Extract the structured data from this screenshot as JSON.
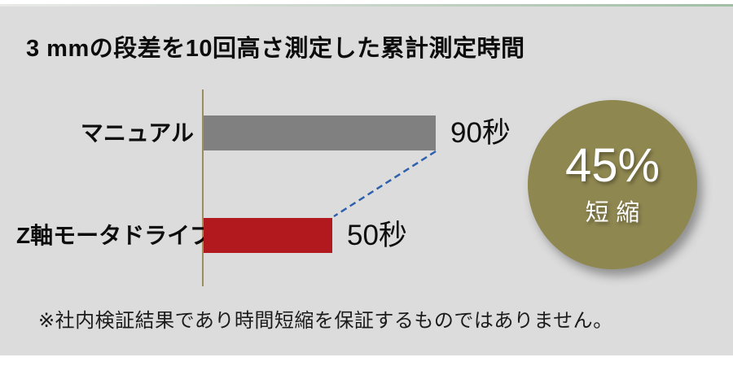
{
  "page": {
    "background": "#ffffff",
    "panel_color": "#dcdcdc",
    "top_accent_gradient": [
      "#e9eae7",
      "#9fbfa4"
    ]
  },
  "chart_data": {
    "type": "bar",
    "orientation": "horizontal",
    "title": "3 mmの段差を10回高さ測定した累計測定時間",
    "categories": [
      "マニュアル",
      "Z軸モータドライブ"
    ],
    "values": [
      90,
      50
    ],
    "unit": "秒",
    "value_labels": [
      "90秒",
      "50秒"
    ],
    "bar_colors": [
      "#808080",
      "#b2191e"
    ],
    "axis_color": "#9a8f5c",
    "connector_color": "#2e61ac",
    "xlim": [
      0,
      90
    ],
    "grid": false,
    "legend": false
  },
  "badge": {
    "percent": "45%",
    "label": "短縮",
    "color": "#8f8750",
    "text_color": "#ffffff"
  },
  "footnote": "※社内検証結果であり時間短縮を保証するものではありません。"
}
